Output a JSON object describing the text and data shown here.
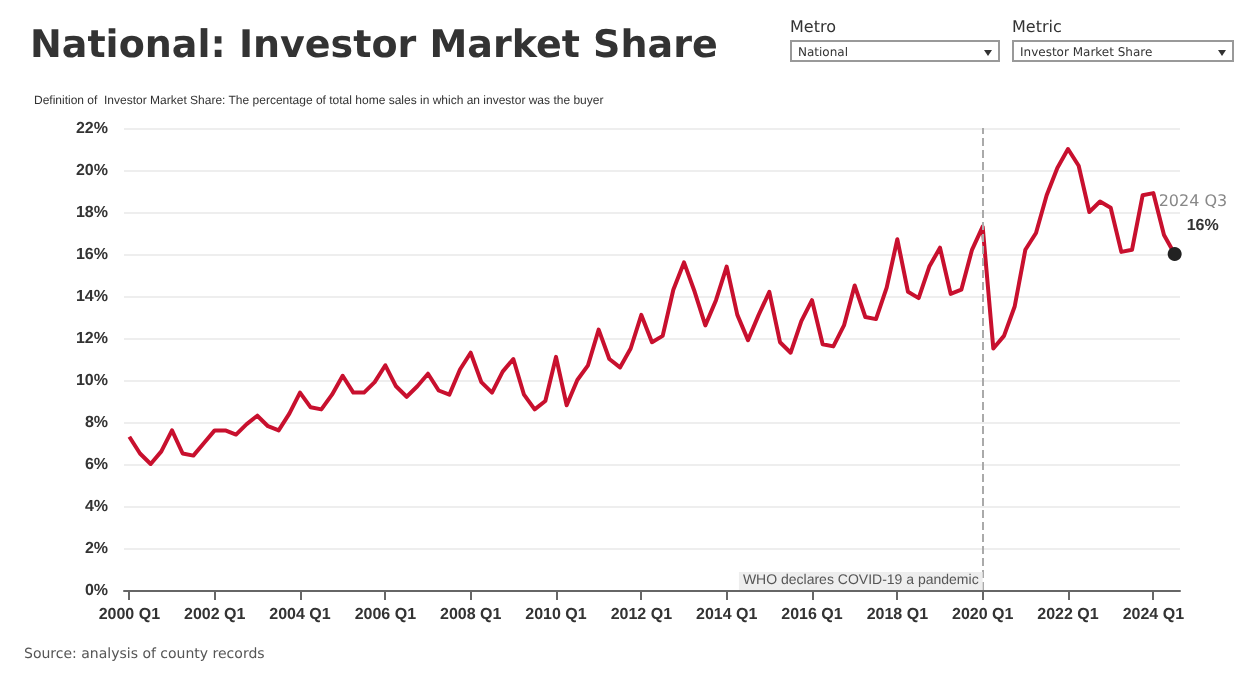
{
  "chart_data": {
    "type": "line",
    "title": "National: Investor Market Share",
    "subtitle": "Definition of  Investor Market Share: The percentage of total home sales in which an investor was the buyer",
    "categories": [
      "2000 Q1",
      null,
      null,
      null,
      null,
      null,
      null,
      null,
      "2002 Q1",
      null,
      null,
      null,
      null,
      null,
      null,
      null,
      "2004 Q1",
      null,
      null,
      null,
      null,
      null,
      null,
      null,
      "2006 Q1",
      null,
      null,
      null,
      null,
      null,
      null,
      null,
      "2008 Q1",
      null,
      null,
      null,
      null,
      null,
      null,
      null,
      "2010 Q1",
      null,
      null,
      null,
      null,
      null,
      null,
      null,
      "2012 Q1",
      null,
      null,
      null,
      null,
      null,
      null,
      null,
      "2014 Q1",
      null,
      null,
      null,
      null,
      null,
      null,
      null,
      "2016 Q1",
      null,
      null,
      null,
      null,
      null,
      null,
      null,
      "2018 Q1",
      null,
      null,
      null,
      null,
      null,
      null,
      null,
      "2020 Q1",
      null,
      null,
      null,
      null,
      null,
      null,
      null,
      "2022 Q1",
      null,
      null,
      null,
      null,
      null,
      null,
      null,
      "2024 Q1",
      null,
      null
    ],
    "series": [
      {
        "color": "#c8102e",
        "values": [
          7.3,
          6.5,
          6.0,
          6.6,
          7.6,
          6.5,
          6.4,
          7.0,
          7.6,
          7.6,
          7.4,
          7.9,
          8.3,
          7.8,
          7.6,
          8.4,
          9.4,
          8.7,
          8.6,
          9.3,
          10.2,
          9.4,
          9.4,
          9.9,
          10.7,
          9.7,
          9.2,
          9.7,
          10.3,
          9.5,
          9.3,
          10.5,
          11.3,
          9.9,
          9.4,
          10.4,
          11.0,
          9.3,
          8.6,
          9.0,
          11.1,
          8.8,
          10.0,
          10.7,
          12.4,
          11.0,
          10.6,
          11.5,
          13.1,
          11.8,
          12.1,
          14.3,
          15.6,
          14.2,
          12.6,
          13.8,
          15.4,
          13.1,
          11.9,
          13.1,
          14.2,
          11.8,
          11.3,
          12.8,
          13.8,
          11.7,
          11.6,
          12.6,
          14.5,
          13.0,
          12.9,
          14.4,
          16.7,
          14.2,
          13.9,
          15.4,
          16.3,
          14.1,
          14.3,
          16.2,
          17.3,
          11.5,
          12.1,
          13.5,
          16.2,
          17.0,
          18.8,
          20.1,
          21.0,
          20.2,
          18.0,
          18.5,
          18.2,
          16.1,
          16.2,
          18.8,
          18.9,
          16.9,
          16
        ],
        "value_labels": [
          null,
          null,
          null,
          null,
          null,
          null,
          null,
          null,
          null,
          null,
          null,
          null,
          null,
          null,
          null,
          null,
          null,
          null,
          null,
          null,
          null,
          null,
          null,
          null,
          null,
          null,
          null,
          null,
          null,
          null,
          null,
          null,
          null,
          null,
          null,
          null,
          null,
          null,
          null,
          null,
          null,
          null,
          null,
          null,
          null,
          null,
          null,
          null,
          null,
          null,
          null,
          null,
          null,
          null,
          null,
          null,
          null,
          null,
          null,
          null,
          null,
          null,
          null,
          null,
          null,
          null,
          null,
          null,
          null,
          null,
          null,
          null,
          null,
          null,
          null,
          null,
          null,
          null,
          null,
          null,
          null,
          null,
          null,
          null,
          null,
          null,
          null,
          null,
          null,
          null,
          null,
          null,
          null,
          null,
          null,
          null,
          null,
          null,
          "16%"
        ]
      }
    ],
    "ylim": [
      0,
      22
    ],
    "yticks": [
      {
        "value": 0,
        "label": "0%"
      },
      {
        "value": 2,
        "label": "2%"
      },
      {
        "value": 4,
        "label": "4%"
      },
      {
        "value": 6,
        "label": "6%"
      },
      {
        "value": 8,
        "label": "8%"
      },
      {
        "value": 10,
        "label": "10%"
      },
      {
        "value": 12,
        "label": "12%"
      },
      {
        "value": 14,
        "label": "14%"
      },
      {
        "value": 16,
        "label": "16%"
      },
      {
        "value": 18,
        "label": "18%"
      },
      {
        "value": 20,
        "label": "20%"
      },
      {
        "value": 22,
        "label": "22%"
      }
    ],
    "ref_lines": [
      {
        "axis": "x",
        "value": "2020 Q1",
        "label": "WHO declares COVID-19 a pandemic",
        "color": "#aaaaaa",
        "line_style": "dashed"
      }
    ],
    "annotations": [
      "2024 Q3",
      "Metro",
      "National",
      "Metric",
      "Investor Market Share",
      "Source: analysis of county records"
    ],
    "grid": "y",
    "marker": "none",
    "line_style": "solid"
  }
}
